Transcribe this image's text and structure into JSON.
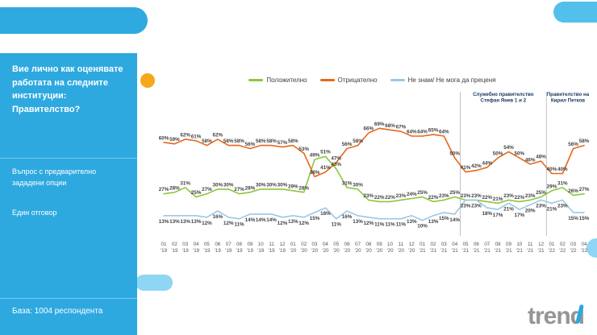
{
  "sidebar": {
    "title": "Вие лично как оценявате работата на следните институции: Правителство?",
    "subtitle1": "Въпрос с предварително зададени опции",
    "subtitle2": "Един отговор",
    "base": "База: 1004 респондента"
  },
  "logo_text": "trend",
  "chart_data": {
    "type": "line",
    "title": "",
    "legend_position": "top",
    "grid": false,
    "ylim": [
      0,
      80
    ],
    "x": [
      {
        "m": "01",
        "y": "'19"
      },
      {
        "m": "02",
        "y": "'19"
      },
      {
        "m": "03",
        "y": "'19"
      },
      {
        "m": "04",
        "y": "'19"
      },
      {
        "m": "05",
        "y": "'19"
      },
      {
        "m": "06",
        "y": "'19"
      },
      {
        "m": "07",
        "y": "'19"
      },
      {
        "m": "08",
        "y": "'19"
      },
      {
        "m": "09",
        "y": "'19"
      },
      {
        "m": "10",
        "y": "'19"
      },
      {
        "m": "11",
        "y": "'19"
      },
      {
        "m": "12",
        "y": "'19"
      },
      {
        "m": "01",
        "y": "'20"
      },
      {
        "m": "02",
        "y": "'20"
      },
      {
        "m": "03",
        "y": "'20"
      },
      {
        "m": "04",
        "y": "'20"
      },
      {
        "m": "05",
        "y": "'20"
      },
      {
        "m": "06",
        "y": "'20"
      },
      {
        "m": "07",
        "y": "'20"
      },
      {
        "m": "08",
        "y": "'20"
      },
      {
        "m": "09",
        "y": "'20"
      },
      {
        "m": "10",
        "y": "'20"
      },
      {
        "m": "11",
        "y": "'20"
      },
      {
        "m": "12",
        "y": "'20"
      },
      {
        "m": "01",
        "y": "'21"
      },
      {
        "m": "02",
        "y": "'21"
      },
      {
        "m": "03",
        "y": "'21"
      },
      {
        "m": "04",
        "y": "'21"
      },
      {
        "m": "05",
        "y": "'21"
      },
      {
        "m": "06",
        "y": "'21"
      },
      {
        "m": "07",
        "y": "'21"
      },
      {
        "m": "08",
        "y": "'21"
      },
      {
        "m": "09",
        "y": "'21"
      },
      {
        "m": "10",
        "y": "'21"
      },
      {
        "m": "11",
        "y": "'21"
      },
      {
        "m": "12",
        "y": "'21"
      },
      {
        "m": "01",
        "y": "'22"
      },
      {
        "m": "02",
        "y": "'22"
      },
      {
        "m": "03",
        "y": "'22"
      },
      {
        "m": "04",
        "y": "'22"
      }
    ],
    "series": [
      {
        "name": "Положително",
        "color": "#8DC63F",
        "label_pos": "above",
        "values": [
          27,
          28,
          31,
          25,
          27,
          30,
          30,
          27,
          28,
          30,
          30,
          30,
          29,
          28,
          49,
          51,
          43,
          31,
          30,
          23,
          22,
          22,
          23,
          24,
          25,
          22,
          23,
          25,
          23,
          23,
          22,
          21,
          23,
          22,
          23,
          25,
          29,
          31,
          26,
          27
        ]
      },
      {
        "name": "Отрицателно",
        "color": "#E8671B",
        "label_pos": "above",
        "values": [
          60,
          59,
          62,
          61,
          58,
          62,
          58,
          58,
          56,
          58,
          58,
          57,
          58,
          53,
          38,
          41,
          47,
          56,
          58,
          66,
          69,
          68,
          67,
          64,
          64,
          65,
          64,
          50,
          41,
          42,
          44,
          50,
          54,
          50,
          46,
          48,
          40,
          40,
          56,
          58
        ]
      },
      {
        "name": "Не знам/ Не мога да преценя",
        "color": "#9CC7E5",
        "label_pos": "below",
        "values": [
          13,
          13,
          13,
          13,
          12,
          16,
          12,
          11,
          14,
          14,
          14,
          12,
          13,
          12,
          15,
          18,
          11,
          16,
          13,
          12,
          11,
          11,
          11,
          13,
          10,
          13,
          15,
          14,
          23,
          23,
          18,
          17,
          21,
          17,
          20,
          23,
          21,
          23,
          15,
          15
        ]
      }
    ],
    "annotations": [
      {
        "lines": [
          "Служебно правителство",
          "Стефан Янев 1 и 2"
        ],
        "start": 28,
        "end": 35
      },
      {
        "lines": [
          "Правителство на",
          "Кирил Петков"
        ],
        "start": 36,
        "end": 39
      }
    ]
  }
}
